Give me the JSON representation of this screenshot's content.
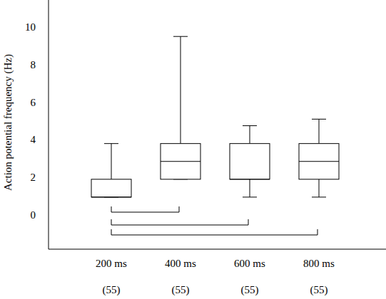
{
  "chart_data": {
    "type": "box",
    "y_label": "Action potential frequency (Hz)",
    "categories": [
      "200 ms",
      "400 ms",
      "600 ms",
      "800 ms"
    ],
    "n_labels": [
      "(55)",
      "(55)",
      "(55)",
      "(55)"
    ],
    "min": [
      0.95,
      1.9,
      0.95,
      0.95
    ],
    "q1": [
      0.95,
      1.9,
      1.9,
      1.9
    ],
    "median": [
      0.95,
      2.85,
      1.9,
      2.85
    ],
    "q3": [
      1.9,
      3.8,
      3.8,
      3.8
    ],
    "max": [
      3.8,
      9.5,
      4.75,
      5.1
    ],
    "comparisons": [
      [
        "200 ms",
        "400 ms"
      ],
      [
        "200 ms",
        "600 ms"
      ],
      [
        "200 ms",
        "800 ms"
      ]
    ],
    "color": "#ffffff",
    "ylim": [
      -1.82,
      11.44
    ],
    "yticks": [
      0,
      2,
      4,
      6,
      8,
      10
    ],
    "grid": false
  }
}
